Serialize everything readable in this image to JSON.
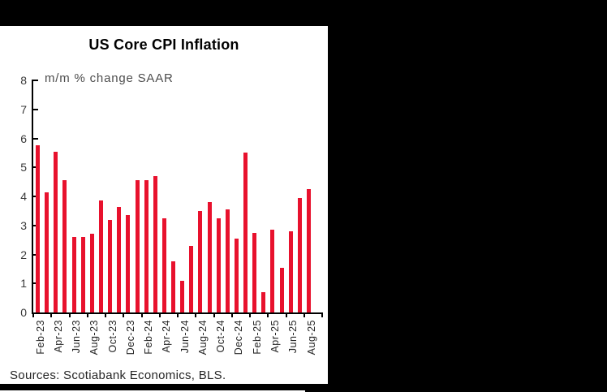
{
  "page": {
    "background_color": "#000000",
    "card_background_color": "#ffffff"
  },
  "header": {
    "title": "US Core CPI Inflation",
    "subtitle": "m/m % change SAAR"
  },
  "footer": {
    "source": "Sources: Scotiabank Economics, BLS."
  },
  "chart_data": {
    "type": "bar",
    "title": "US Core CPI Inflation",
    "subtitle": "m/m % change SAAR",
    "xlabel": "",
    "ylabel": "",
    "ylim": [
      0,
      8
    ],
    "yticks": [
      0,
      1,
      2,
      3,
      4,
      5,
      6,
      7,
      8
    ],
    "grid": false,
    "legend": null,
    "bar_color": "#e8112d",
    "axis_color": "#000000",
    "categories": [
      "Feb-23",
      "Mar-23",
      "Apr-23",
      "May-23",
      "Jun-23",
      "Jul-23",
      "Aug-23",
      "Sep-23",
      "Oct-23",
      "Nov-23",
      "Dec-23",
      "Jan-24",
      "Feb-24",
      "Mar-24",
      "Apr-24",
      "May-24",
      "Jun-24",
      "Jul-24",
      "Aug-24",
      "Sep-24",
      "Oct-24",
      "Nov-24",
      "Dec-24",
      "Jan-25",
      "Feb-25",
      "Mar-25",
      "Apr-25",
      "May-25",
      "Jun-25",
      "Jul-25",
      "Aug-25"
    ],
    "values": [
      5.75,
      4.15,
      5.55,
      4.55,
      2.6,
      2.6,
      2.7,
      3.85,
      3.2,
      3.65,
      3.35,
      4.55,
      4.55,
      4.7,
      3.25,
      1.75,
      1.1,
      2.3,
      3.5,
      3.8,
      3.25,
      3.55,
      2.55,
      5.5,
      2.75,
      0.7,
      2.85,
      1.55,
      2.8,
      3.95,
      4.25
    ],
    "x_tick_labels": [
      "Feb-23",
      "Apr-23",
      "Jun-23",
      "Aug-23",
      "Oct-23",
      "Dec-23",
      "Feb-24",
      "Apr-24",
      "Jun-24",
      "Aug-24",
      "Oct-24",
      "Dec-24",
      "Feb-25",
      "Apr-25",
      "Jun-25",
      "Aug-25"
    ]
  }
}
